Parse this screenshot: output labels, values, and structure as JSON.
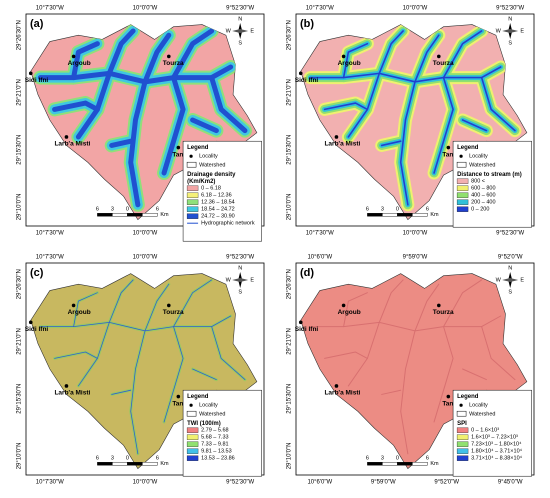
{
  "legend_title": "Legend",
  "legend_locality": "Locality",
  "legend_watershed": "Watershed",
  "compass": [
    "N",
    "S",
    "E",
    "W"
  ],
  "scale": [
    "6",
    "3",
    "0",
    "6",
    "Km"
  ],
  "places": [
    "Sidi Ifni",
    "Argoub",
    "Tourza",
    "Larb'a Misti",
    "Tangarfa"
  ],
  "panels": [
    {
      "label": "(a)",
      "top_lon": [
        "10°7'30\"W",
        "10°0'0\"W",
        "9°52'30\"W"
      ],
      "bottom_lon": [
        "10°7'30\"W",
        "10°0'0\"W",
        "9°52'30\"W"
      ],
      "lat": [
        "29°26'30\"N",
        "29°21'0\"N",
        "29°15'30\"N",
        "29°10'0\"N"
      ],
      "class_title": [
        "Drainage density",
        "(Km/Km2)"
      ],
      "classes": [
        {
          "label": "0 – 6.18",
          "color": "#f2a5a5"
        },
        {
          "label": "6.18 – 12.36",
          "color": "#f5f07a"
        },
        {
          "label": "12.36 – 18.54",
          "color": "#8fe07a"
        },
        {
          "label": "18.54 – 24.72",
          "color": "#40c8e0"
        },
        {
          "label": "24.72 – 30.90",
          "color": "#2050d0"
        }
      ],
      "extra": "Hydrographic network"
    },
    {
      "label": "(b)",
      "top_lon": [
        "10°7'30\"W",
        "10°0'0\"W",
        "9°52'30\"W"
      ],
      "bottom_lon": [
        "10°7'30\"W",
        "10°0'0\"W",
        "9°52'30\"W"
      ],
      "lat": [
        "29°26'30\"N",
        "29°21'0\"N",
        "29°15'30\"N",
        "29°10'0\"N"
      ],
      "class_title": [
        "Distance to stream (m)"
      ],
      "classes": [
        {
          "label": "800 <",
          "color": "#f2b0b0"
        },
        {
          "label": "600 – 800",
          "color": "#f0f070"
        },
        {
          "label": "400 – 600",
          "color": "#90e070"
        },
        {
          "label": "200 – 400",
          "color": "#30c0d8"
        },
        {
          "label": "0 – 200",
          "color": "#2040d0"
        }
      ]
    },
    {
      "label": "(c)",
      "top_lon": [
        "10°7'30\"W",
        "10°0'0\"W",
        "9°52'30\"W"
      ],
      "bottom_lon": [
        "10°7'30\"W",
        "10°0'0\"W",
        "9°52'30\"W"
      ],
      "lat": [
        "29°26'30\"N",
        "29°21'0\"N",
        "29°15'30\"N",
        "29°10'0\"N"
      ],
      "class_title": [
        "TWI (100/m)"
      ],
      "classes": [
        {
          "label": "2.79 – 5.68",
          "color": "#f08080"
        },
        {
          "label": "5.68 – 7.33",
          "color": "#f0f070"
        },
        {
          "label": "7.33 – 9.81",
          "color": "#90e070"
        },
        {
          "label": "9.81 – 13.53",
          "color": "#40c0e8"
        },
        {
          "label": "13.53 – 23.86",
          "color": "#2040d0"
        }
      ]
    },
    {
      "label": "(d)",
      "top_lon": [
        "10°6'0\"W",
        "9°59'0\"W",
        "9°52'0\"W"
      ],
      "bottom_lon": [
        "10°6'0\"W",
        "9°59'0\"W",
        "9°52'0\"W",
        "9°45'0\"W"
      ],
      "lat": [
        "29°26'30\"N",
        "29°21'0\"N",
        "29°15'30\"N",
        "29°10'0\"N"
      ],
      "class_title": [
        "SPI"
      ],
      "classes": [
        {
          "label": "0 – 1.6×10³",
          "color": "#f08080"
        },
        {
          "label": "1.6×10³ – 7.23×10³",
          "color": "#f0f070"
        },
        {
          "label": "7.23×10³ – 1.80×10⁴",
          "color": "#90e070"
        },
        {
          "label": "1.80×10⁴ – 3.71×10⁴",
          "color": "#40c0e8"
        },
        {
          "label": "3.71×10⁴ – 8.38×10⁴",
          "color": "#2040d0"
        }
      ]
    }
  ]
}
